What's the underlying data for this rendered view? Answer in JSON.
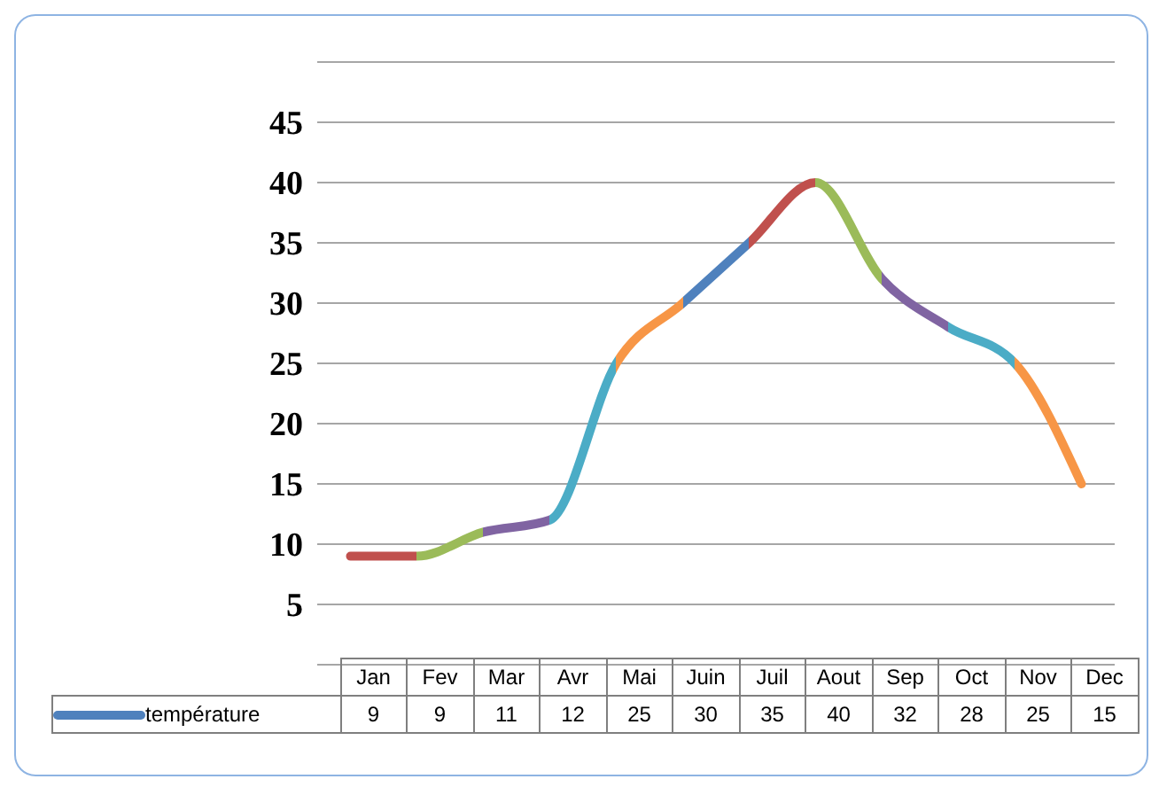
{
  "chart_data": {
    "type": "line",
    "categories": [
      "Jan",
      "Fev",
      "Mar",
      "Avr",
      "Mai",
      "Juin",
      "Juil",
      "Aout",
      "Sep",
      "Oct",
      "Nov",
      "Dec"
    ],
    "series": [
      {
        "name": "température",
        "color": "#4f81bd",
        "colors": [
          "#c0504d",
          "#9bbb59",
          "#8064a2",
          "#4bacc6",
          "#f79646",
          "#4f81bd",
          "#c0504d",
          "#9bbb59",
          "#8064a2",
          "#4bacc6",
          "#f79646",
          "#f79646"
        ],
        "values": [
          9,
          9,
          11,
          12,
          25,
          30,
          35,
          40,
          32,
          28,
          25,
          15
        ]
      }
    ],
    "ylim": [
      0,
      50
    ],
    "yticks": [
      {
        "value": 0,
        "label": null
      },
      5,
      10,
      15,
      20,
      25,
      30,
      35,
      40,
      45,
      {
        "value": 50,
        "label": null
      }
    ],
    "grid": "y",
    "legend": "bottom",
    "data_labels": true,
    "marker": "none",
    "line_style": "solid"
  }
}
